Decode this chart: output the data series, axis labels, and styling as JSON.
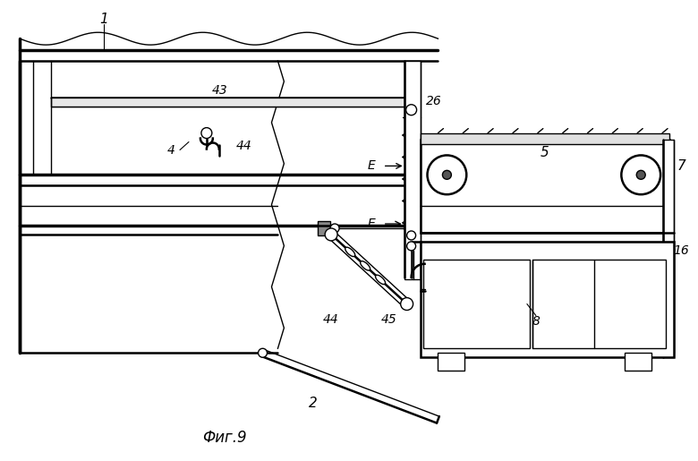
{
  "bg_color": "#ffffff",
  "line_color": "#000000",
  "title": "Фиг.9",
  "fig_width": 7.8,
  "fig_height": 5.15,
  "dpi": 100
}
